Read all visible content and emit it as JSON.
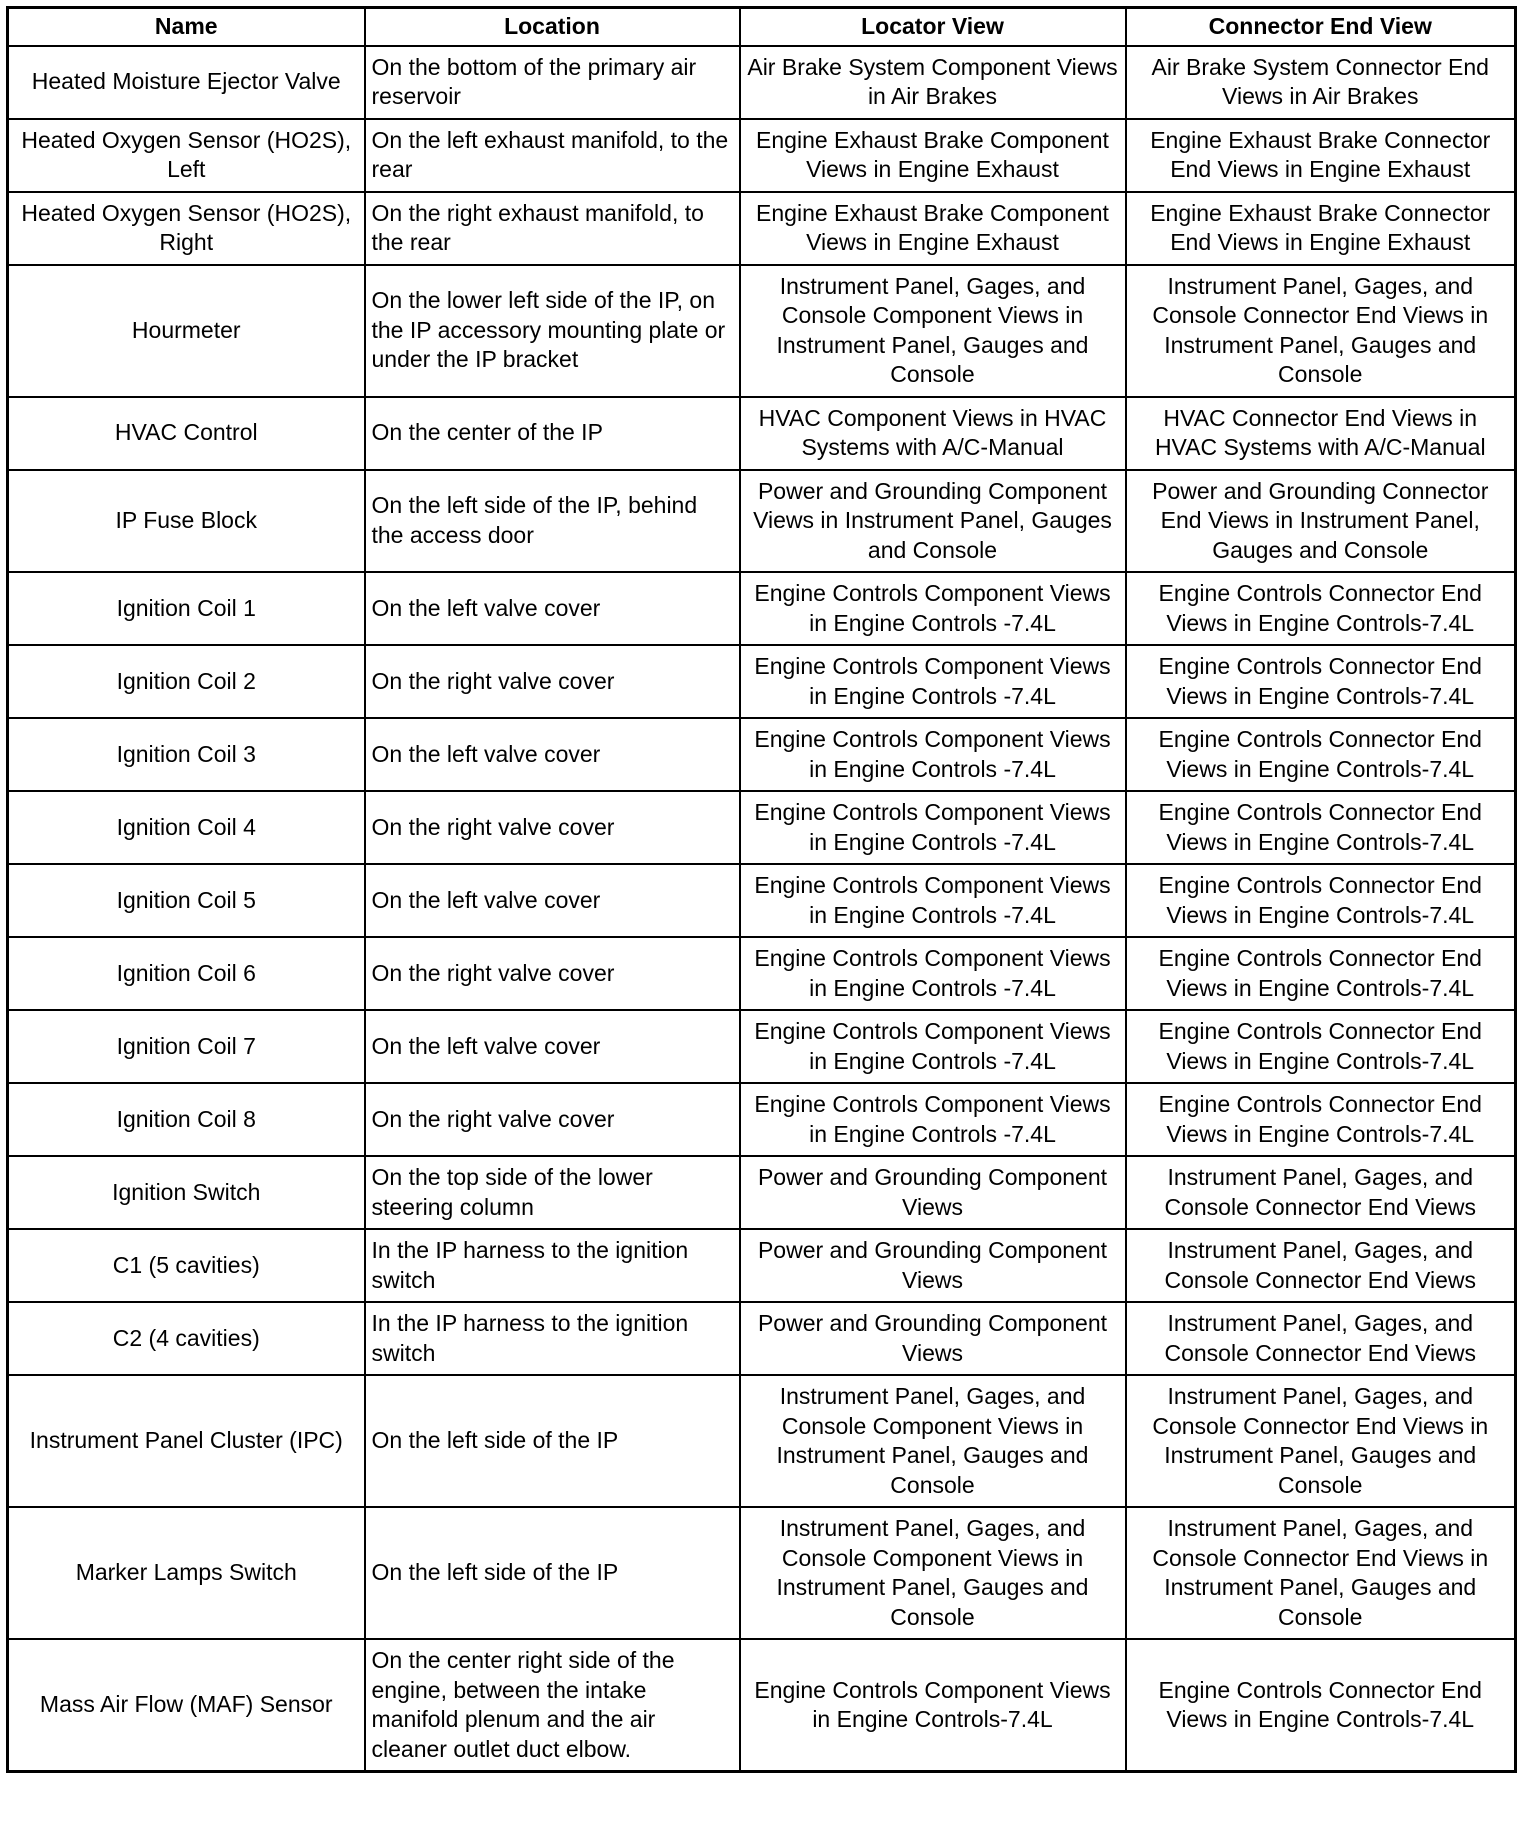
{
  "headers": [
    "Name",
    "Location",
    "Locator View",
    "Connector End View"
  ],
  "rows": [
    [
      "Heated Moisture Ejector Valve",
      "On the bottom of the primary air reservoir",
      "Air Brake System Component Views in Air Brakes",
      "Air Brake System Connector End Views in Air Brakes"
    ],
    [
      "Heated Oxygen Sensor (HO2S), Left",
      "On the left exhaust manifold, to the rear",
      "Engine Exhaust Brake Component Views in Engine Exhaust",
      "Engine Exhaust Brake Connector End Views in Engine Exhaust"
    ],
    [
      "Heated Oxygen Sensor (HO2S), Right",
      "On the right exhaust manifold, to the rear",
      "Engine Exhaust Brake Component Views in Engine Exhaust",
      "Engine Exhaust Brake Connector End Views in Engine Exhaust"
    ],
    [
      "Hourmeter",
      "On the lower left side of the IP, on the IP accessory mounting plate or under the IP bracket",
      "Instrument Panel, Gages, and Console Component Views in Instrument Panel, Gauges and Console",
      "Instrument Panel, Gages, and Console Connector End Views in Instrument Panel, Gauges and Console"
    ],
    [
      "HVAC Control",
      "On the center of the IP",
      "HVAC Component Views in HVAC Systems with A/C-Manual",
      "HVAC Connector End Views in HVAC Systems with A/C-Manual"
    ],
    [
      "IP Fuse Block",
      "On the left side of the IP, behind the access door",
      "Power and Grounding Component Views in Instrument Panel, Gauges and Console",
      "Power and Grounding Connector End Views in Instrument Panel, Gauges and Console"
    ],
    [
      "Ignition Coil 1",
      "On the left valve cover",
      "Engine Controls Component Views in Engine Controls -7.4L",
      "Engine Controls Connector End Views in Engine Controls-7.4L"
    ],
    [
      "Ignition Coil 2",
      "On the right valve cover",
      "Engine Controls Component Views in Engine Controls -7.4L",
      "Engine Controls Connector End Views in Engine Controls-7.4L"
    ],
    [
      "Ignition Coil 3",
      "On the left valve cover",
      "Engine Controls Component Views in Engine Controls -7.4L",
      "Engine Controls Connector End Views in Engine Controls-7.4L"
    ],
    [
      "Ignition Coil 4",
      "On the right valve cover",
      "Engine Controls Component Views in Engine Controls -7.4L",
      "Engine Controls Connector End Views in Engine Controls-7.4L"
    ],
    [
      "Ignition Coil 5",
      "On the left valve cover",
      "Engine Controls Component Views in Engine Controls -7.4L",
      "Engine Controls Connector End Views in Engine Controls-7.4L"
    ],
    [
      "Ignition Coil 6",
      "On the right valve cover",
      "Engine Controls Component Views in Engine Controls -7.4L",
      "Engine Controls Connector End Views in Engine Controls-7.4L"
    ],
    [
      "Ignition Coil 7",
      "On the left valve cover",
      "Engine Controls Component Views in Engine Controls -7.4L",
      "Engine Controls Connector End Views in Engine Controls-7.4L"
    ],
    [
      "Ignition Coil 8",
      "On the right valve cover",
      "Engine Controls Component Views in Engine Controls -7.4L",
      "Engine Controls Connector End Views in Engine Controls-7.4L"
    ],
    [
      "Ignition Switch",
      "On the top side of the lower steering column",
      "Power and Grounding Component Views",
      "Instrument Panel, Gages, and Console Connector End Views"
    ],
    [
      "C1 (5 cavities)",
      "In the IP harness to the ignition switch",
      "Power and Grounding Component Views",
      "Instrument Panel, Gages, and Console Connector End Views"
    ],
    [
      "C2 (4 cavities)",
      "In the IP harness to the ignition switch",
      "Power and Grounding Component Views",
      "Instrument Panel, Gages, and Console Connector End Views"
    ],
    [
      "Instrument Panel Cluster (IPC)",
      "On the left side of the IP",
      "Instrument Panel, Gages, and Console Component Views in Instrument Panel, Gauges and Console",
      "Instrument Panel, Gages, and Console Connector End Views in Instrument Panel, Gauges and Console"
    ],
    [
      "Marker Lamps Switch",
      "On the left side of the IP",
      "Instrument Panel, Gages, and Console Component Views in Instrument Panel, Gauges and Console",
      "Instrument Panel, Gages, and Console Connector End Views in Instrument Panel, Gauges and Console"
    ],
    [
      "Mass Air Flow (MAF) Sensor",
      "On the center right side of the engine, between the intake manifold plenum and the air cleaner outlet duct elbow.",
      "Engine Controls Component Views in Engine Controls-7.4L",
      "Engine Controls Connector End Views in Engine Controls-7.4L"
    ]
  ]
}
